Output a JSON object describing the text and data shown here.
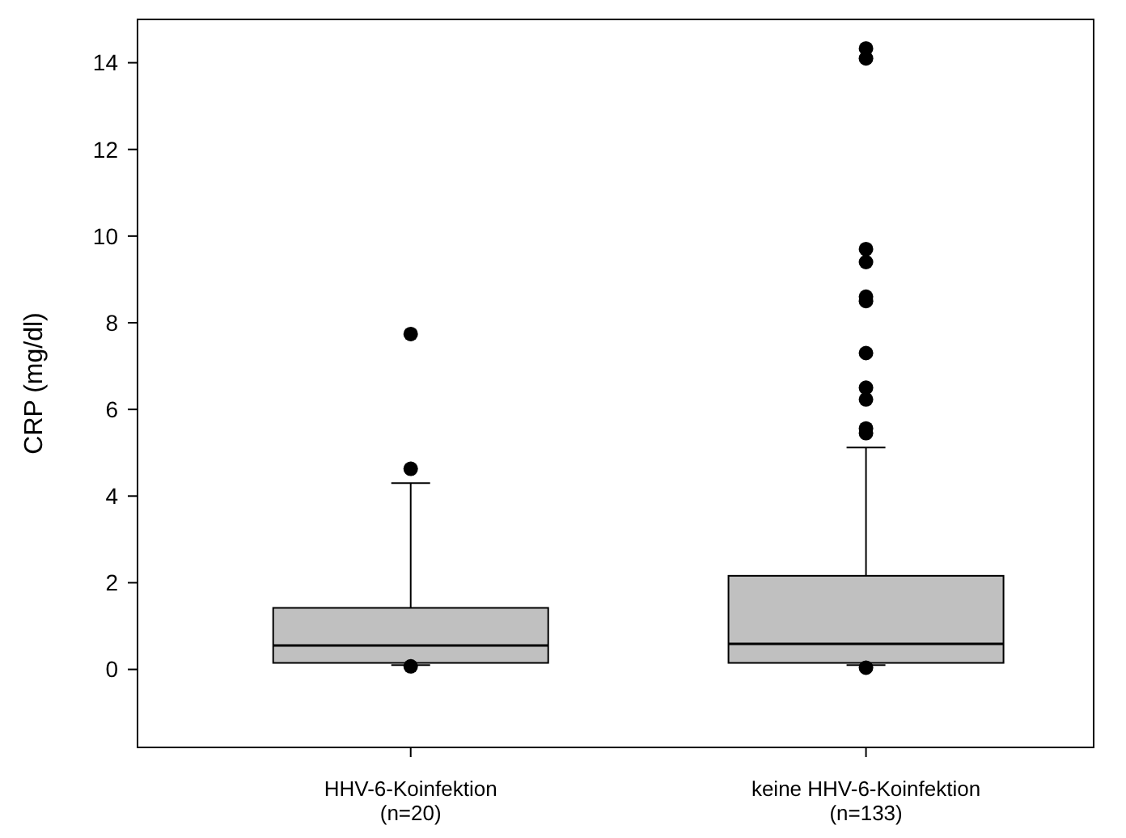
{
  "chart_data": {
    "type": "box",
    "ylabel": "CRP (mg/dl)",
    "categories": [
      "HHV-6-Koinfektion\n(n=20)",
      "keine HHV-6-Koinfektion\n(n=133)"
    ],
    "color": "#c0c0c0",
    "boxes": [
      {
        "low": 0.1,
        "q1": 0.15,
        "median": 0.55,
        "q3": 1.42,
        "high": 4.3,
        "outliers": [
          7.74,
          4.63,
          0.07
        ]
      },
      {
        "low": 0.1,
        "q1": 0.15,
        "median": 0.59,
        "q3": 2.16,
        "high": 5.12,
        "outliers": [
          14.33,
          14.1,
          9.7,
          9.4,
          8.6,
          8.5,
          7.3,
          6.5,
          6.23,
          5.56,
          5.45,
          0.04
        ]
      }
    ],
    "ylim": [
      -1.8,
      15
    ],
    "yticks": [
      0,
      2,
      4,
      6,
      8,
      10,
      12,
      14
    ],
    "grid": false
  }
}
